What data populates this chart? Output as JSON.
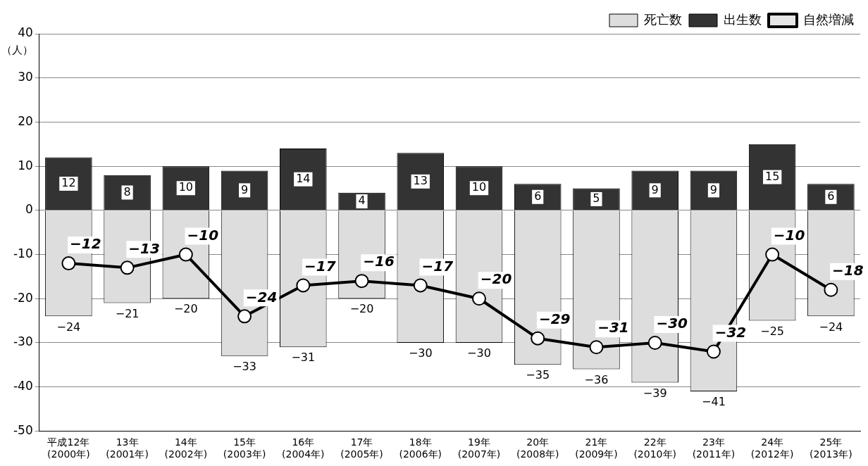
{
  "chart_data": {
    "type": "bar",
    "ylabel": "（人）",
    "categories": [
      "平成12年\n(2000年)",
      "13年\n(2001年)",
      "14年\n(2002年)",
      "15年\n(2003年)",
      "16年\n(2004年)",
      "17年\n(2005年)",
      "18年\n(2006年)",
      "19年\n(2007年)",
      "20年\n(2008年)",
      "21年\n(2009年)",
      "22年\n(2010年)",
      "23年\n(2011年)",
      "24年\n(2012年)",
      "25年\n(2013年)"
    ],
    "series": [
      {
        "name": "死亡数",
        "color": "#dddddd",
        "values": [
          -24,
          -21,
          -20,
          -33,
          -31,
          -20,
          -30,
          -30,
          -35,
          -36,
          -39,
          -41,
          -25,
          -24
        ]
      },
      {
        "name": "出生数",
        "color": "#333333",
        "values": [
          12,
          8,
          10,
          9,
          14,
          4,
          13,
          10,
          6,
          5,
          9,
          9,
          15,
          6
        ]
      },
      {
        "name": "自然増減",
        "type": "line",
        "color": "#000000",
        "values": [
          -12,
          -13,
          -10,
          -24,
          -17,
          -16,
          -17,
          -20,
          -29,
          -31,
          -30,
          -32,
          -10,
          -18
        ]
      }
    ],
    "stacked": true,
    "ylim": [
      -50,
      40
    ],
    "yticks": [
      -50,
      -40,
      -30,
      -20,
      -10,
      0,
      10,
      20,
      30,
      40
    ],
    "grid": "y",
    "legend": "top right",
    "marker": "circle",
    "line_style": "solid",
    "data_labels": true
  }
}
